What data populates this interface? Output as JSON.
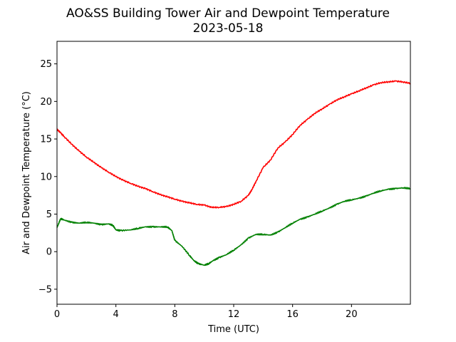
{
  "chart_data": {
    "type": "line",
    "title": "AO&SS Building Tower Air and Dewpoint Temperature",
    "subtitle": "2023-05-18",
    "xlabel": "Time (UTC)",
    "ylabel": "Air and Dewpoint Temperature (°C)",
    "xlim": [
      0,
      24
    ],
    "ylim": [
      -7,
      28
    ],
    "xticks": [
      0,
      4,
      8,
      12,
      16,
      20
    ],
    "xtick_labels": [
      "0",
      "4",
      "8",
      "12",
      "16",
      "20"
    ],
    "yticks": [
      -5,
      0,
      5,
      10,
      15,
      20,
      25
    ],
    "ytick_labels": [
      "−5",
      "0",
      "5",
      "10",
      "15",
      "20",
      "25"
    ],
    "grid": false,
    "legend": "none",
    "series": [
      {
        "color": "#ff0000",
        "x": [
          0,
          0.25,
          0.5,
          1,
          1.5,
          2,
          2.5,
          3,
          3.5,
          4,
          4.5,
          5,
          5.5,
          6,
          6.5,
          7,
          7.5,
          8,
          8.5,
          9,
          9.5,
          10,
          10.5,
          11,
          11.5,
          12,
          12.5,
          13,
          13.25,
          13.5,
          14,
          14.5,
          15,
          15.5,
          16,
          16.5,
          17,
          17.5,
          18,
          18.5,
          19,
          19.5,
          20,
          20.5,
          21,
          21.5,
          22,
          22.5,
          23,
          23.5,
          24
        ],
        "y": [
          16.3,
          15.8,
          15.3,
          14.3,
          13.4,
          12.6,
          11.9,
          11.2,
          10.6,
          10.0,
          9.5,
          9.1,
          8.7,
          8.4,
          8.0,
          7.6,
          7.3,
          7.0,
          6.7,
          6.5,
          6.3,
          6.2,
          5.9,
          5.9,
          6.0,
          6.3,
          6.7,
          7.5,
          8.3,
          9.3,
          11.2,
          12.2,
          13.8,
          14.6,
          15.6,
          16.8,
          17.6,
          18.4,
          19.0,
          19.6,
          20.2,
          20.6,
          21.0,
          21.4,
          21.8,
          22.2,
          22.5,
          22.6,
          22.7,
          22.6,
          22.4
        ]
      },
      {
        "color": "#008000",
        "x": [
          0,
          0.25,
          0.5,
          1,
          1.5,
          2,
          2.5,
          3,
          3.5,
          3.8,
          4,
          4.3,
          5,
          5.5,
          6,
          6.5,
          7,
          7.5,
          7.8,
          8,
          8.5,
          9,
          9.3,
          9.6,
          10,
          10.3,
          10.6,
          11,
          11.5,
          12,
          12.5,
          13,
          13.5,
          14,
          14.5,
          15,
          15.5,
          16,
          16.5,
          17,
          17.5,
          18,
          18.5,
          19,
          19.5,
          20,
          20.5,
          21,
          21.5,
          22,
          22.5,
          23,
          23.5,
          24
        ],
        "y": [
          3.2,
          4.4,
          4.2,
          3.9,
          3.8,
          3.9,
          3.8,
          3.6,
          3.7,
          3.5,
          2.9,
          2.8,
          2.9,
          3.1,
          3.3,
          3.3,
          3.3,
          3.3,
          2.8,
          1.5,
          0.7,
          -0.5,
          -1.2,
          -1.6,
          -1.8,
          -1.6,
          -1.2,
          -0.8,
          -0.4,
          0.2,
          0.9,
          1.8,
          2.3,
          2.3,
          2.2,
          2.6,
          3.2,
          3.8,
          4.3,
          4.6,
          5.0,
          5.4,
          5.8,
          6.3,
          6.7,
          6.9,
          7.1,
          7.4,
          7.8,
          8.1,
          8.3,
          8.4,
          8.5,
          8.4
        ]
      }
    ]
  }
}
